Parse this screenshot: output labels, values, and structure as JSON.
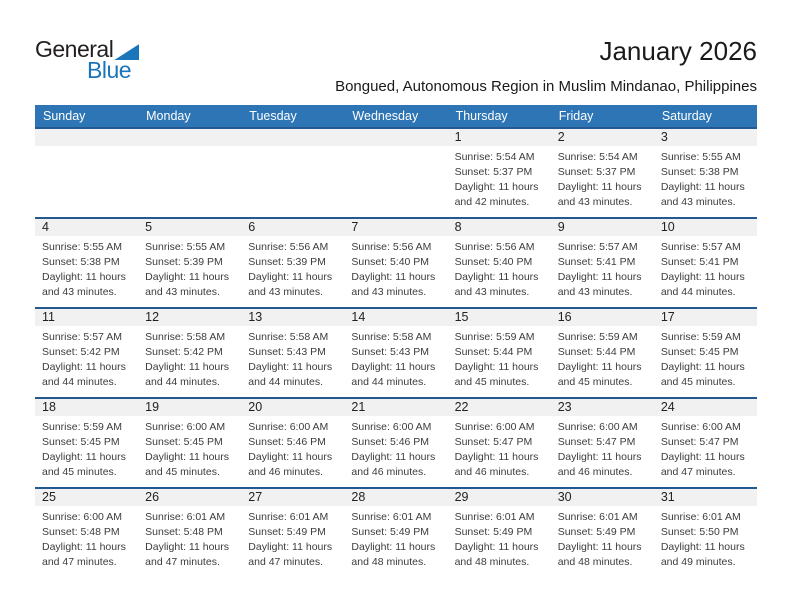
{
  "logo": {
    "part1": "General",
    "part2": "Blue"
  },
  "header": {
    "title": "January 2026",
    "subtitle": "Bongued, Autonomous Region in Muslim Mindanao, Philippines"
  },
  "colors": {
    "header_bar_blue": "#2e75b5",
    "row_divider_blue": "#24598f",
    "day_band_gray": "#f1f1f1",
    "logo_blue": "#1b75bb",
    "logo_dark": "#231f20"
  },
  "calendar": {
    "weekdays": [
      "Sunday",
      "Monday",
      "Tuesday",
      "Wednesday",
      "Thursday",
      "Friday",
      "Saturday"
    ],
    "weeks": [
      [
        null,
        null,
        null,
        null,
        {
          "day": "1",
          "sunrise": "Sunrise: 5:54 AM",
          "sunset": "Sunset: 5:37 PM",
          "daylight": "Daylight: 11 hours and 42 minutes."
        },
        {
          "day": "2",
          "sunrise": "Sunrise: 5:54 AM",
          "sunset": "Sunset: 5:37 PM",
          "daylight": "Daylight: 11 hours and 43 minutes."
        },
        {
          "day": "3",
          "sunrise": "Sunrise: 5:55 AM",
          "sunset": "Sunset: 5:38 PM",
          "daylight": "Daylight: 11 hours and 43 minutes."
        }
      ],
      [
        {
          "day": "4",
          "sunrise": "Sunrise: 5:55 AM",
          "sunset": "Sunset: 5:38 PM",
          "daylight": "Daylight: 11 hours and 43 minutes."
        },
        {
          "day": "5",
          "sunrise": "Sunrise: 5:55 AM",
          "sunset": "Sunset: 5:39 PM",
          "daylight": "Daylight: 11 hours and 43 minutes."
        },
        {
          "day": "6",
          "sunrise": "Sunrise: 5:56 AM",
          "sunset": "Sunset: 5:39 PM",
          "daylight": "Daylight: 11 hours and 43 minutes."
        },
        {
          "day": "7",
          "sunrise": "Sunrise: 5:56 AM",
          "sunset": "Sunset: 5:40 PM",
          "daylight": "Daylight: 11 hours and 43 minutes."
        },
        {
          "day": "8",
          "sunrise": "Sunrise: 5:56 AM",
          "sunset": "Sunset: 5:40 PM",
          "daylight": "Daylight: 11 hours and 43 minutes."
        },
        {
          "day": "9",
          "sunrise": "Sunrise: 5:57 AM",
          "sunset": "Sunset: 5:41 PM",
          "daylight": "Daylight: 11 hours and 43 minutes."
        },
        {
          "day": "10",
          "sunrise": "Sunrise: 5:57 AM",
          "sunset": "Sunset: 5:41 PM",
          "daylight": "Daylight: 11 hours and 44 minutes."
        }
      ],
      [
        {
          "day": "11",
          "sunrise": "Sunrise: 5:57 AM",
          "sunset": "Sunset: 5:42 PM",
          "daylight": "Daylight: 11 hours and 44 minutes."
        },
        {
          "day": "12",
          "sunrise": "Sunrise: 5:58 AM",
          "sunset": "Sunset: 5:42 PM",
          "daylight": "Daylight: 11 hours and 44 minutes."
        },
        {
          "day": "13",
          "sunrise": "Sunrise: 5:58 AM",
          "sunset": "Sunset: 5:43 PM",
          "daylight": "Daylight: 11 hours and 44 minutes."
        },
        {
          "day": "14",
          "sunrise": "Sunrise: 5:58 AM",
          "sunset": "Sunset: 5:43 PM",
          "daylight": "Daylight: 11 hours and 44 minutes."
        },
        {
          "day": "15",
          "sunrise": "Sunrise: 5:59 AM",
          "sunset": "Sunset: 5:44 PM",
          "daylight": "Daylight: 11 hours and 45 minutes."
        },
        {
          "day": "16",
          "sunrise": "Sunrise: 5:59 AM",
          "sunset": "Sunset: 5:44 PM",
          "daylight": "Daylight: 11 hours and 45 minutes."
        },
        {
          "day": "17",
          "sunrise": "Sunrise: 5:59 AM",
          "sunset": "Sunset: 5:45 PM",
          "daylight": "Daylight: 11 hours and 45 minutes."
        }
      ],
      [
        {
          "day": "18",
          "sunrise": "Sunrise: 5:59 AM",
          "sunset": "Sunset: 5:45 PM",
          "daylight": "Daylight: 11 hours and 45 minutes."
        },
        {
          "day": "19",
          "sunrise": "Sunrise: 6:00 AM",
          "sunset": "Sunset: 5:45 PM",
          "daylight": "Daylight: 11 hours and 45 minutes."
        },
        {
          "day": "20",
          "sunrise": "Sunrise: 6:00 AM",
          "sunset": "Sunset: 5:46 PM",
          "daylight": "Daylight: 11 hours and 46 minutes."
        },
        {
          "day": "21",
          "sunrise": "Sunrise: 6:00 AM",
          "sunset": "Sunset: 5:46 PM",
          "daylight": "Daylight: 11 hours and 46 minutes."
        },
        {
          "day": "22",
          "sunrise": "Sunrise: 6:00 AM",
          "sunset": "Sunset: 5:47 PM",
          "daylight": "Daylight: 11 hours and 46 minutes."
        },
        {
          "day": "23",
          "sunrise": "Sunrise: 6:00 AM",
          "sunset": "Sunset: 5:47 PM",
          "daylight": "Daylight: 11 hours and 46 minutes."
        },
        {
          "day": "24",
          "sunrise": "Sunrise: 6:00 AM",
          "sunset": "Sunset: 5:47 PM",
          "daylight": "Daylight: 11 hours and 47 minutes."
        }
      ],
      [
        {
          "day": "25",
          "sunrise": "Sunrise: 6:00 AM",
          "sunset": "Sunset: 5:48 PM",
          "daylight": "Daylight: 11 hours and 47 minutes."
        },
        {
          "day": "26",
          "sunrise": "Sunrise: 6:01 AM",
          "sunset": "Sunset: 5:48 PM",
          "daylight": "Daylight: 11 hours and 47 minutes."
        },
        {
          "day": "27",
          "sunrise": "Sunrise: 6:01 AM",
          "sunset": "Sunset: 5:49 PM",
          "daylight": "Daylight: 11 hours and 47 minutes."
        },
        {
          "day": "28",
          "sunrise": "Sunrise: 6:01 AM",
          "sunset": "Sunset: 5:49 PM",
          "daylight": "Daylight: 11 hours and 48 minutes."
        },
        {
          "day": "29",
          "sunrise": "Sunrise: 6:01 AM",
          "sunset": "Sunset: 5:49 PM",
          "daylight": "Daylight: 11 hours and 48 minutes."
        },
        {
          "day": "30",
          "sunrise": "Sunrise: 6:01 AM",
          "sunset": "Sunset: 5:49 PM",
          "daylight": "Daylight: 11 hours and 48 minutes."
        },
        {
          "day": "31",
          "sunrise": "Sunrise: 6:01 AM",
          "sunset": "Sunset: 5:50 PM",
          "daylight": "Daylight: 11 hours and 49 minutes."
        }
      ]
    ]
  }
}
